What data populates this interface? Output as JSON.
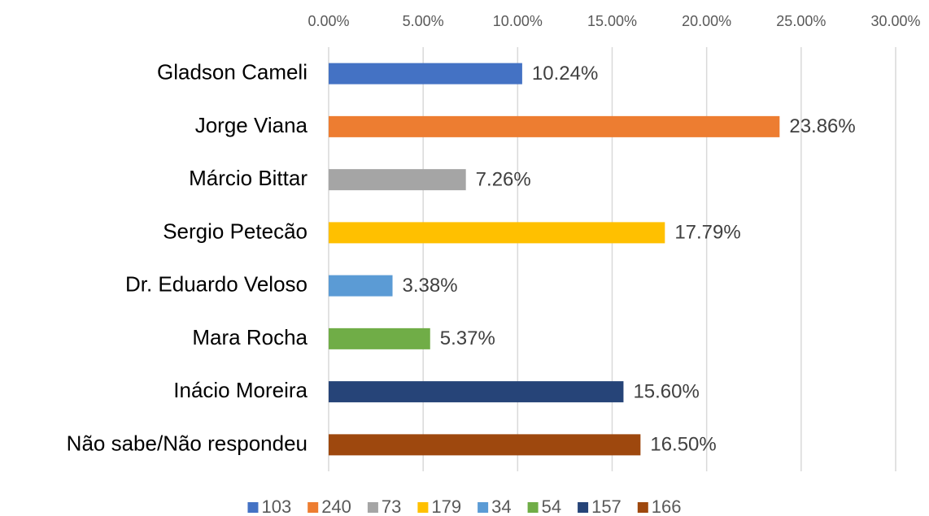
{
  "chart_data": {
    "type": "bar",
    "orientation": "horizontal",
    "categories": [
      "Gladson Cameli",
      "Jorge Viana",
      "Márcio Bittar",
      "Sergio Petecão",
      "Dr. Eduardo Veloso",
      "Mara Rocha",
      "Inácio Moreira",
      "Não sabe/Não respondeu"
    ],
    "series": [
      {
        "name": "103",
        "color": "#4472c4",
        "values": [
          10.24,
          null,
          null,
          null,
          null,
          null,
          null,
          null
        ],
        "value_labels": [
          "10.24%",
          null,
          null,
          null,
          null,
          null,
          null,
          null
        ]
      },
      {
        "name": "240",
        "color": "#ed7d31",
        "values": [
          null,
          23.86,
          null,
          null,
          null,
          null,
          null,
          null
        ],
        "value_labels": [
          null,
          "23.86%",
          null,
          null,
          null,
          null,
          null,
          null
        ]
      },
      {
        "name": "73",
        "color": "#a5a5a5",
        "values": [
          null,
          null,
          7.26,
          null,
          null,
          null,
          null,
          null
        ],
        "value_labels": [
          null,
          null,
          "7.26%",
          null,
          null,
          null,
          null,
          null
        ]
      },
      {
        "name": "179",
        "color": "#ffc000",
        "values": [
          null,
          null,
          null,
          17.79,
          null,
          null,
          null,
          null
        ],
        "value_labels": [
          null,
          null,
          null,
          "17.79%",
          null,
          null,
          null,
          null
        ]
      },
      {
        "name": "34",
        "color": "#5b9bd5",
        "values": [
          null,
          null,
          null,
          null,
          3.38,
          null,
          null,
          null
        ],
        "value_labels": [
          null,
          null,
          null,
          null,
          "3.38%",
          null,
          null,
          null
        ]
      },
      {
        "name": "54",
        "color": "#70ad47",
        "values": [
          null,
          null,
          null,
          null,
          null,
          5.37,
          null,
          null
        ],
        "value_labels": [
          null,
          null,
          null,
          null,
          null,
          "5.37%",
          null,
          null
        ]
      },
      {
        "name": "157",
        "color": "#264478",
        "values": [
          null,
          null,
          null,
          null,
          null,
          null,
          15.6,
          null
        ],
        "value_labels": [
          null,
          null,
          null,
          null,
          null,
          null,
          "15.60%",
          null
        ]
      },
      {
        "name": "166",
        "color": "#9e480e",
        "values": [
          null,
          null,
          null,
          null,
          null,
          null,
          null,
          16.5
        ],
        "value_labels": [
          null,
          null,
          null,
          null,
          null,
          null,
          null,
          "16.50%"
        ]
      }
    ],
    "xlim": [
      0,
      30
    ],
    "xticks": [
      {
        "value": 0,
        "label": "0.00%"
      },
      {
        "value": 5,
        "label": "5.00%"
      },
      {
        "value": 10,
        "label": "10.00%"
      },
      {
        "value": 15,
        "label": "15.00%"
      },
      {
        "value": 20,
        "label": "20.00%"
      },
      {
        "value": 25,
        "label": "25.00%"
      },
      {
        "value": 30,
        "label": "30.00%"
      }
    ],
    "grid": true,
    "legend": "bottom"
  }
}
